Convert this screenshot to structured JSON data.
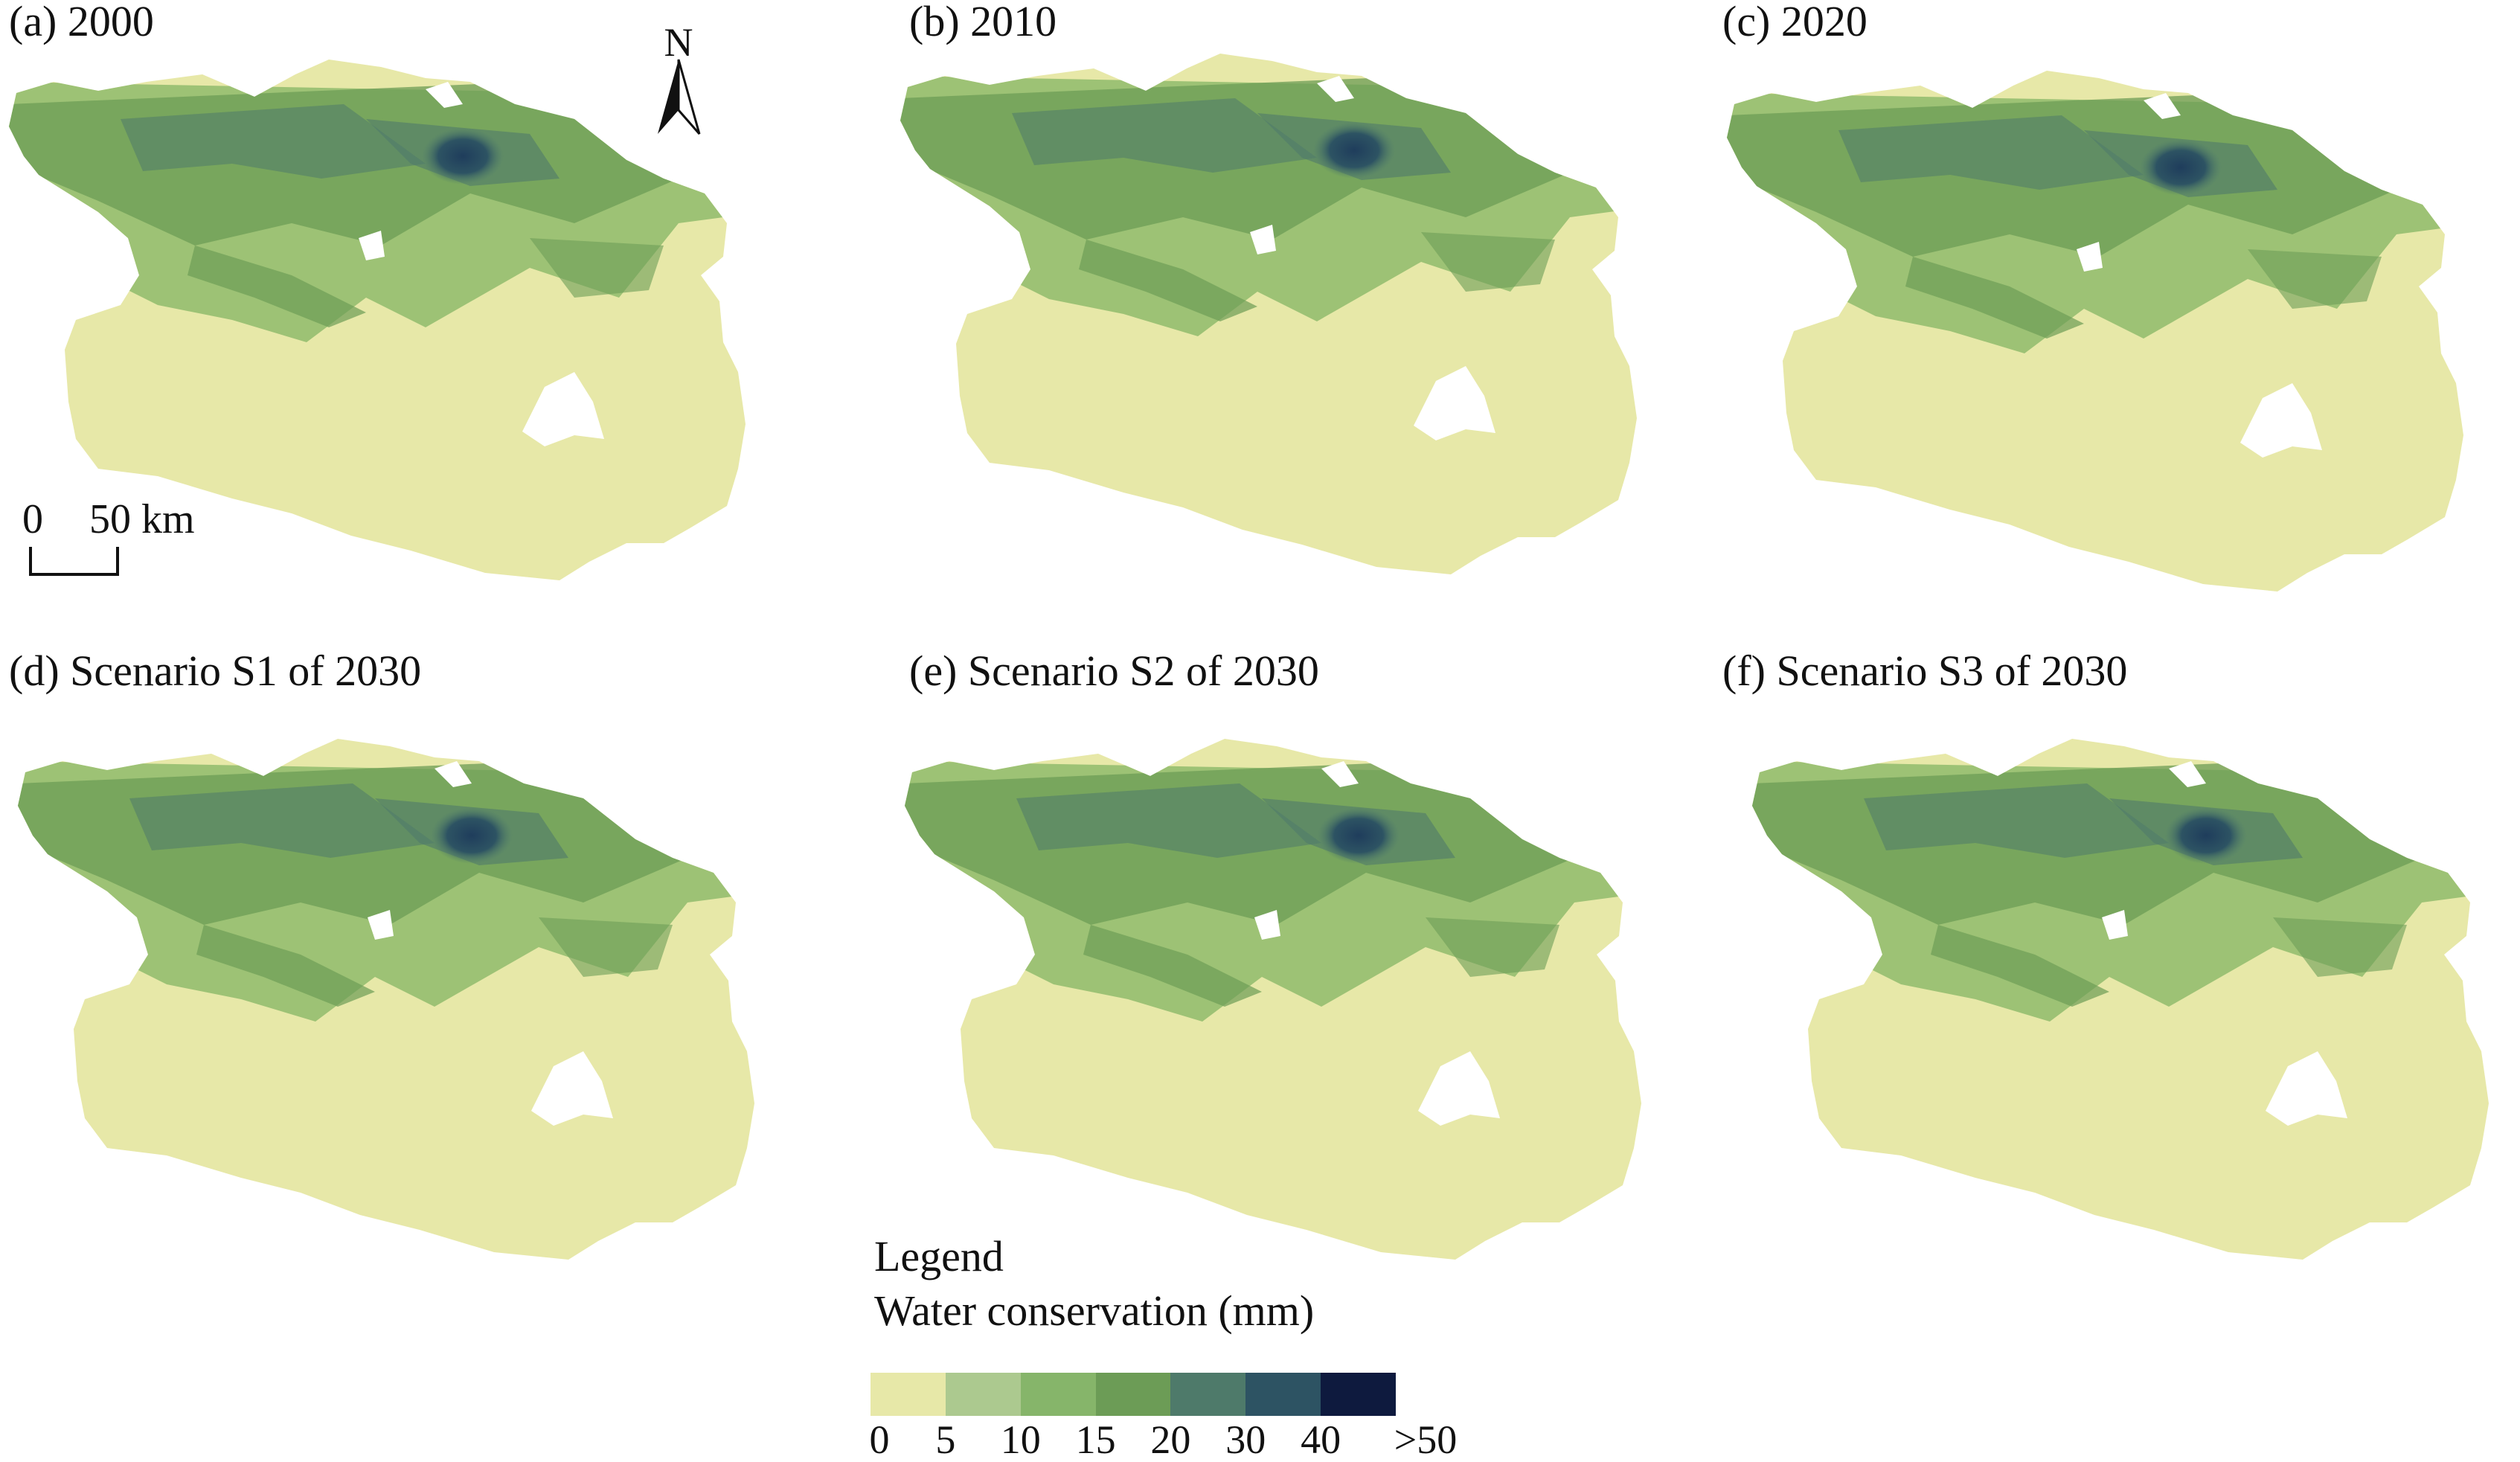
{
  "panels": [
    {
      "title": "(a) 2000"
    },
    {
      "title": "(b) 2010"
    },
    {
      "title": "(c) 2020"
    },
    {
      "title": "(d) Scenario S1 of 2030"
    },
    {
      "title": "(e) Scenario S2 of 2030"
    },
    {
      "title": "(f) Scenario S3 of 2030"
    }
  ],
  "north_arrow": {
    "label": "N"
  },
  "scale_bar": {
    "zero": "0",
    "distance": "50 km"
  },
  "legend": {
    "title": "Legend",
    "subtitle": "Water conservation (mm)",
    "classes": [
      {
        "color": "#e7e8a8"
      },
      {
        "color": "#acc98f"
      },
      {
        "color": "#86b56a"
      },
      {
        "color": "#6c9c56"
      },
      {
        "color": "#4e7a6a"
      },
      {
        "color": "#2d5363"
      },
      {
        "color": "#0e1a3e"
      }
    ],
    "ticks": [
      "0",
      "5",
      "10",
      "15",
      "20",
      "30",
      "40",
      ">50"
    ]
  }
}
